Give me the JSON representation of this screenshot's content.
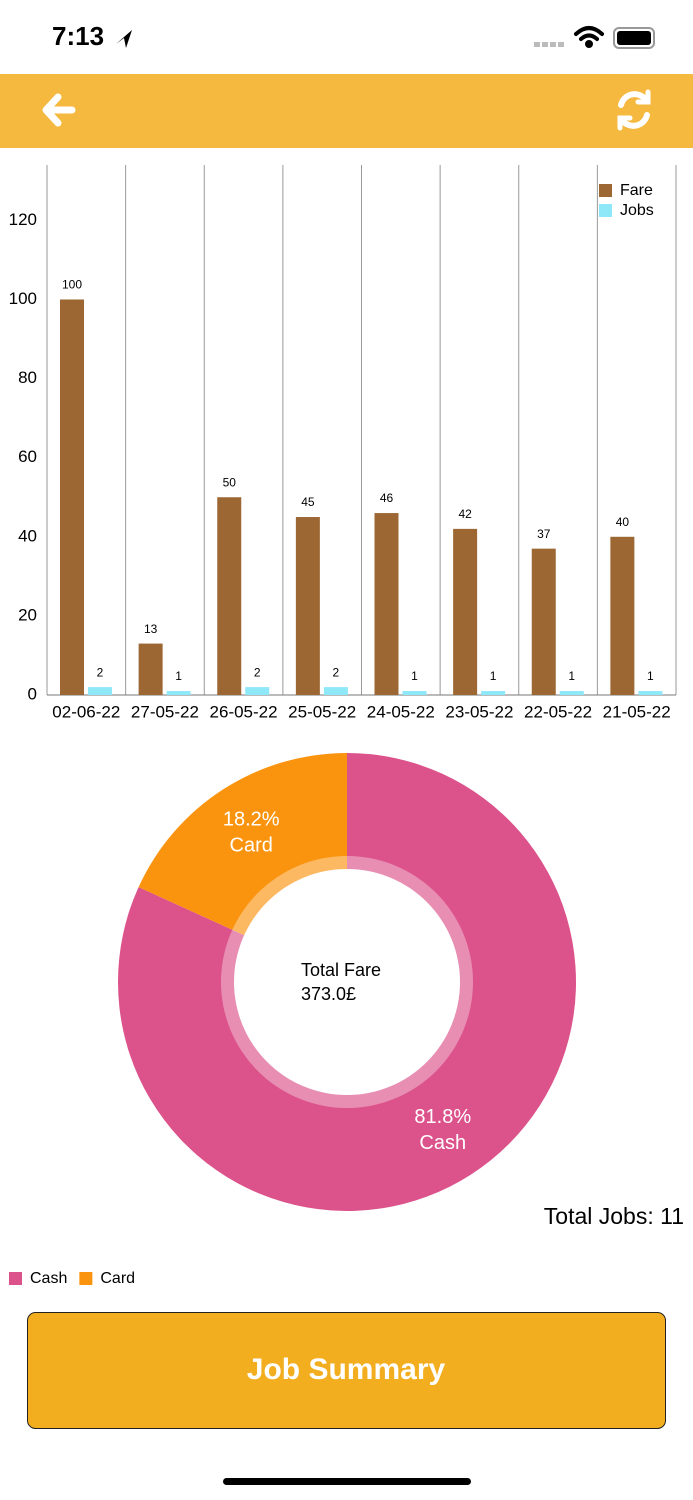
{
  "status_bar": {
    "time": "7:13"
  },
  "chart_data": [
    {
      "type": "bar",
      "categories": [
        "02-06-22",
        "27-05-22",
        "26-05-22",
        "25-05-22",
        "24-05-22",
        "23-05-22",
        "22-05-22",
        "21-05-22"
      ],
      "series": [
        {
          "name": "Fare",
          "color": "#9c6733",
          "values": [
            100,
            13,
            50,
            45,
            46,
            42,
            37,
            40
          ]
        },
        {
          "name": "Jobs",
          "color": "#8ee8f8",
          "values": [
            2,
            1,
            2,
            2,
            1,
            1,
            1,
            1
          ]
        }
      ],
      "ylim": [
        0,
        134
      ],
      "yticks": [
        0,
        20,
        40,
        60,
        80,
        100,
        120
      ],
      "grid": "x",
      "legend": "top-right",
      "data_labels": true
    },
    {
      "type": "pie",
      "categories": [
        "Cash",
        "Card"
      ],
      "values": [
        81.8,
        18.2
      ],
      "value_labels": [
        "81.8%",
        "18.2%"
      ],
      "colors": [
        "#dc528b",
        "#fa940f"
      ],
      "center_label": [
        "Total Fare",
        "373.0£"
      ],
      "legend": "bottom-left"
    }
  ],
  "total_jobs": "Total Jobs: 11",
  "button": {
    "label": "Job Summary"
  }
}
